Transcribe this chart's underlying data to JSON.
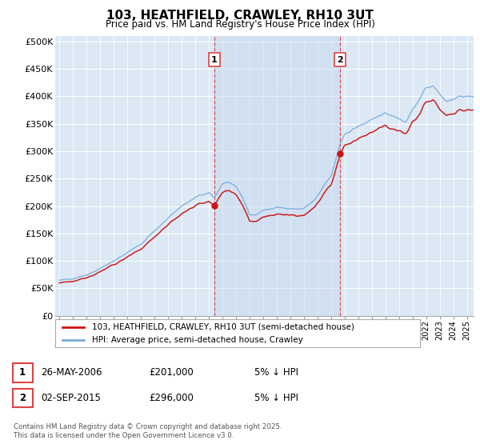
{
  "title": "103, HEATHFIELD, CRAWLEY, RH10 3UT",
  "subtitle": "Price paid vs. HM Land Registry's House Price Index (HPI)",
  "legend_line1": "103, HEATHFIELD, CRAWLEY, RH10 3UT (semi-detached house)",
  "legend_line2": "HPI: Average price, semi-detached house, Crawley",
  "annotation1_label": "1",
  "annotation1_date": "26-MAY-2006",
  "annotation1_price": "£201,000",
  "annotation1_hpi": "5% ↓ HPI",
  "annotation1_year": 2006.4,
  "annotation1_value": 201000,
  "annotation2_label": "2",
  "annotation2_date": "02-SEP-2015",
  "annotation2_price": "£296,000",
  "annotation2_hpi": "5% ↓ HPI",
  "annotation2_year": 2015.67,
  "annotation2_value": 296000,
  "footer": "Contains HM Land Registry data © Crown copyright and database right 2025.\nThis data is licensed under the Open Government Licence v3.0.",
  "ylim": [
    0,
    510000
  ],
  "yticks": [
    0,
    50000,
    100000,
    150000,
    200000,
    250000,
    300000,
    350000,
    400000,
    450000,
    500000
  ],
  "ytick_labels": [
    "£0",
    "£50K",
    "£100K",
    "£150K",
    "£200K",
    "£250K",
    "£300K",
    "£350K",
    "£400K",
    "£450K",
    "£500K"
  ],
  "xlim_start": 1994.7,
  "xlim_end": 2025.5,
  "plot_bg_color": "#dce9f5",
  "shade_color": "#c8d8ee",
  "hpi_line_color": "#7aabda",
  "price_line_color": "#cc1111",
  "vline_color": "#dd4444",
  "grid_color": "#ffffff"
}
